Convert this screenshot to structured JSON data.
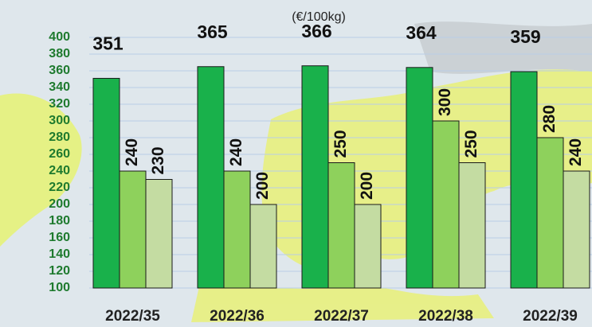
{
  "chart_data": {
    "type": "bar",
    "title": "(€/100kg)",
    "categories": [
      "2022/35",
      "2022/36",
      "2022/37",
      "2022/38",
      "2022/39"
    ],
    "series": [
      {
        "color": "#19b14b",
        "values": [
          351,
          365,
          366,
          364,
          359
        ]
      },
      {
        "color": "#8ed15c",
        "values": [
          240,
          240,
          250,
          300,
          280
        ]
      },
      {
        "color": "#c4dca2",
        "values": [
          230,
          200,
          200,
          250,
          240
        ]
      }
    ],
    "ylim": [
      100,
      400
    ],
    "yticks": [
      100,
      120,
      140,
      160,
      180,
      200,
      220,
      240,
      260,
      280,
      300,
      320,
      340,
      360,
      380,
      400
    ],
    "grid": true
  }
}
